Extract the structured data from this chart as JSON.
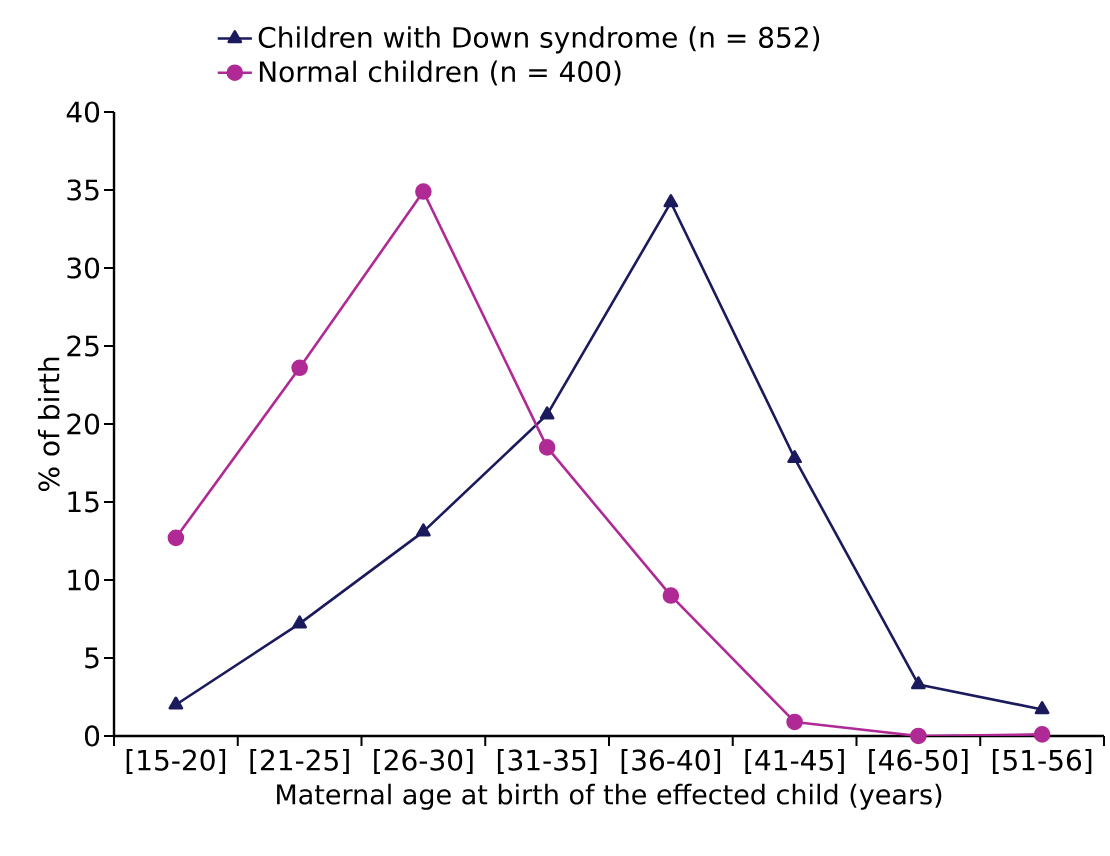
{
  "chart_data": {
    "type": "line",
    "xlabel": "Maternal age at birth of the effected child (years)",
    "ylabel": "% of birth",
    "categories": [
      "[15-20]",
      "[21-25]",
      "[26-30]",
      "[31-35]",
      "[36-40]",
      "[41-45]",
      "[46-50]",
      "[51-56]"
    ],
    "series": [
      {
        "name": "Children with Down syndrome (n = 852)",
        "color": "#1b1a5c",
        "marker": "triangle",
        "values": [
          2.0,
          7.2,
          13.1,
          20.6,
          34.2,
          17.8,
          3.3,
          1.7
        ]
      },
      {
        "name": "Normal children (n = 400)",
        "color": "#b02a96",
        "marker": "circle",
        "values": [
          12.7,
          23.6,
          34.9,
          18.5,
          9.0,
          0.9,
          0,
          0.1
        ]
      }
    ],
    "ylim": [
      0,
      40
    ],
    "yticks": [
      0,
      5,
      10,
      15,
      20,
      25,
      30,
      35,
      40
    ],
    "legend": "top",
    "grid": false,
    "line_style": "solid"
  }
}
